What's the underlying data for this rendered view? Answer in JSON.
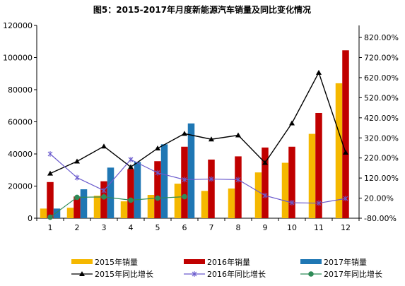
{
  "title": "图5：2015-2017年月度新能源汽车销量及同比变化情况",
  "chart_data": {
    "type": "bar",
    "categories": [
      "1",
      "2",
      "3",
      "4",
      "5",
      "6",
      "7",
      "8",
      "9",
      "10",
      "11",
      "12"
    ],
    "left_axis": {
      "min": 0,
      "max": 120000,
      "ticks": [
        "0",
        "20000",
        "40000",
        "60000",
        "80000",
        "100000",
        "120000"
      ]
    },
    "right_axis": {
      "min": -80,
      "max": 880,
      "ticks": [
        "-80.00%",
        "20.00%",
        "120.00%",
        "220.00%",
        "320.00%",
        "420.00%",
        "520.00%",
        "620.00%",
        "720.00%",
        "820.00%"
      ]
    },
    "bar_series": [
      {
        "name": "2015年销量",
        "color": "#f5b800",
        "values": [
          6000,
          6500,
          14000,
          10500,
          14500,
          21500,
          17000,
          18500,
          28500,
          34500,
          52500,
          84000
        ]
      },
      {
        "name": "2016年销量",
        "color": "#c00000",
        "values": [
          22500,
          13500,
          23000,
          30500,
          35500,
          44500,
          36500,
          38500,
          44000,
          44500,
          65500,
          104500
        ]
      },
      {
        "name": "2017年销量",
        "color": "#1f77b4",
        "values": [
          6000,
          18000,
          31500,
          35000,
          46000,
          59000,
          null,
          null,
          null,
          null,
          null,
          null
        ]
      }
    ],
    "line_series": [
      {
        "name": "2015年同比增长",
        "color": "#000000",
        "marker": "triangle",
        "values": [
          143,
          203,
          278,
          175,
          268,
          341,
          313,
          333,
          196,
          393,
          645,
          247
        ]
      },
      {
        "name": "2016年同比增长",
        "color": "#6a5acd",
        "marker": "x",
        "values": [
          240,
          122,
          58,
          212,
          146,
          112,
          115,
          112,
          33,
          -3,
          -5,
          18
        ]
      },
      {
        "name": "2017年同比增长",
        "color": "#2e8b57",
        "marker": "circle",
        "values": [
          -75,
          24,
          26,
          10,
          20,
          27,
          null,
          null,
          null,
          null,
          null,
          null
        ]
      }
    ],
    "legend_position": "bottom",
    "grid": false
  }
}
